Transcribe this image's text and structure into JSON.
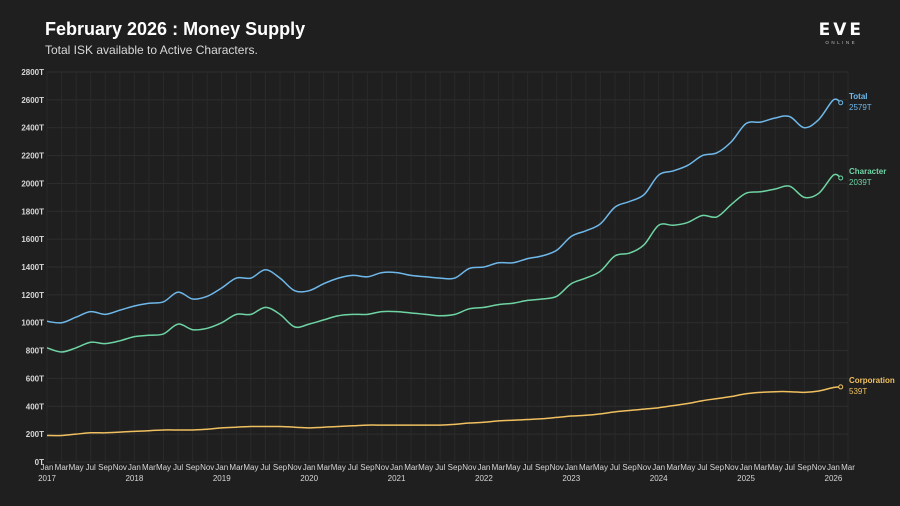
{
  "header": {
    "title": "February 2026 : Money Supply",
    "subtitle": "Total ISK available to Active Characters."
  },
  "logo": {
    "text": "EVE",
    "subtext": "ONLINE"
  },
  "chart_data": {
    "type": "line",
    "title": "February 2026 : Money Supply",
    "subtitle": "Total ISK available to Active Characters.",
    "xlabel": "",
    "ylabel": "",
    "ylim": [
      0,
      2800
    ],
    "grid": true,
    "y_ticks": [
      "0T",
      "200T",
      "400T",
      "600T",
      "800T",
      "1000T",
      "1200T",
      "1400T",
      "1600T",
      "1800T",
      "2000T",
      "2200T",
      "2400T",
      "2600T",
      "2800T"
    ],
    "x_ticks": [
      {
        "m": "Jan",
        "y": "2017"
      },
      {
        "m": "Mar",
        "y": ""
      },
      {
        "m": "May",
        "y": ""
      },
      {
        "m": "Jul",
        "y": ""
      },
      {
        "m": "Sep",
        "y": ""
      },
      {
        "m": "Nov",
        "y": ""
      },
      {
        "m": "Jan",
        "y": "2018"
      },
      {
        "m": "Mar",
        "y": ""
      },
      {
        "m": "May",
        "y": ""
      },
      {
        "m": "Jul",
        "y": ""
      },
      {
        "m": "Sep",
        "y": ""
      },
      {
        "m": "Nov",
        "y": ""
      },
      {
        "m": "Jan",
        "y": "2019"
      },
      {
        "m": "Mar",
        "y": ""
      },
      {
        "m": "May",
        "y": ""
      },
      {
        "m": "Jul",
        "y": ""
      },
      {
        "m": "Sep",
        "y": ""
      },
      {
        "m": "Nov",
        "y": ""
      },
      {
        "m": "Jan",
        "y": "2020"
      },
      {
        "m": "Mar",
        "y": ""
      },
      {
        "m": "May",
        "y": ""
      },
      {
        "m": "Jul",
        "y": ""
      },
      {
        "m": "Sep",
        "y": ""
      },
      {
        "m": "Nov",
        "y": ""
      },
      {
        "m": "Jan",
        "y": "2021"
      },
      {
        "m": "Mar",
        "y": ""
      },
      {
        "m": "May",
        "y": ""
      },
      {
        "m": "Jul",
        "y": ""
      },
      {
        "m": "Sep",
        "y": ""
      },
      {
        "m": "Nov",
        "y": ""
      },
      {
        "m": "Jan",
        "y": "2022"
      },
      {
        "m": "Mar",
        "y": ""
      },
      {
        "m": "May",
        "y": ""
      },
      {
        "m": "Jul",
        "y": ""
      },
      {
        "m": "Sep",
        "y": ""
      },
      {
        "m": "Nov",
        "y": ""
      },
      {
        "m": "Jan",
        "y": "2023"
      },
      {
        "m": "Mar",
        "y": ""
      },
      {
        "m": "May",
        "y": ""
      },
      {
        "m": "Jul",
        "y": ""
      },
      {
        "m": "Sep",
        "y": ""
      },
      {
        "m": "Nov",
        "y": ""
      },
      {
        "m": "Jan",
        "y": "2024"
      },
      {
        "m": "Mar",
        "y": ""
      },
      {
        "m": "May",
        "y": ""
      },
      {
        "m": "Jul",
        "y": ""
      },
      {
        "m": "Sep",
        "y": ""
      },
      {
        "m": "Nov",
        "y": ""
      },
      {
        "m": "Jan",
        "y": "2025"
      },
      {
        "m": "Mar",
        "y": ""
      },
      {
        "m": "May",
        "y": ""
      },
      {
        "m": "Jul",
        "y": ""
      },
      {
        "m": "Sep",
        "y": ""
      },
      {
        "m": "Nov",
        "y": ""
      },
      {
        "m": "Jan",
        "y": "2026"
      },
      {
        "m": "Mar",
        "y": ""
      }
    ],
    "x": [
      "2017-01",
      "2017-03",
      "2017-05",
      "2017-07",
      "2017-09",
      "2017-11",
      "2018-01",
      "2018-03",
      "2018-05",
      "2018-07",
      "2018-09",
      "2018-11",
      "2019-01",
      "2019-03",
      "2019-05",
      "2019-07",
      "2019-09",
      "2019-11",
      "2020-01",
      "2020-03",
      "2020-05",
      "2020-07",
      "2020-09",
      "2020-11",
      "2021-01",
      "2021-03",
      "2021-05",
      "2021-07",
      "2021-09",
      "2021-11",
      "2022-01",
      "2022-03",
      "2022-05",
      "2022-07",
      "2022-09",
      "2022-11",
      "2023-01",
      "2023-03",
      "2023-05",
      "2023-07",
      "2023-09",
      "2023-11",
      "2024-01",
      "2024-03",
      "2024-05",
      "2024-07",
      "2024-09",
      "2024-11",
      "2025-01",
      "2025-03",
      "2025-05",
      "2025-07",
      "2025-09",
      "2025-11",
      "2026-01",
      "2026-02"
    ],
    "series": [
      {
        "name": "Total",
        "end_label": "2579T",
        "color": "#6fb8ea",
        "values": [
          1010,
          1000,
          1040,
          1080,
          1060,
          1090,
          1120,
          1140,
          1150,
          1220,
          1170,
          1190,
          1250,
          1320,
          1320,
          1380,
          1320,
          1230,
          1230,
          1280,
          1320,
          1340,
          1330,
          1360,
          1360,
          1340,
          1330,
          1320,
          1320,
          1390,
          1400,
          1430,
          1430,
          1460,
          1480,
          1520,
          1620,
          1660,
          1710,
          1830,
          1870,
          1920,
          2060,
          2090,
          2130,
          2200,
          2220,
          2300,
          2430,
          2440,
          2470,
          2480,
          2400,
          2460,
          2600,
          2579
        ]
      },
      {
        "name": "Character",
        "end_label": "2039T",
        "color": "#6fd4a4",
        "values": [
          820,
          790,
          820,
          860,
          850,
          870,
          900,
          910,
          920,
          990,
          950,
          960,
          1000,
          1060,
          1060,
          1110,
          1060,
          970,
          990,
          1020,
          1050,
          1060,
          1060,
          1080,
          1080,
          1070,
          1060,
          1050,
          1060,
          1100,
          1110,
          1130,
          1140,
          1160,
          1170,
          1190,
          1280,
          1320,
          1370,
          1480,
          1500,
          1560,
          1700,
          1700,
          1720,
          1770,
          1760,
          1850,
          1930,
          1940,
          1960,
          1980,
          1900,
          1930,
          2060,
          2039
        ]
      },
      {
        "name": "Corporation",
        "end_label": "539T",
        "color": "#f0c060",
        "values": [
          190,
          190,
          200,
          210,
          210,
          215,
          220,
          225,
          230,
          230,
          230,
          235,
          245,
          250,
          255,
          255,
          255,
          250,
          245,
          250,
          255,
          260,
          265,
          265,
          265,
          265,
          265,
          265,
          270,
          280,
          285,
          295,
          300,
          305,
          310,
          320,
          330,
          335,
          345,
          360,
          370,
          380,
          390,
          405,
          420,
          440,
          455,
          470,
          490,
          500,
          505,
          505,
          500,
          510,
          535,
          539
        ]
      }
    ]
  }
}
